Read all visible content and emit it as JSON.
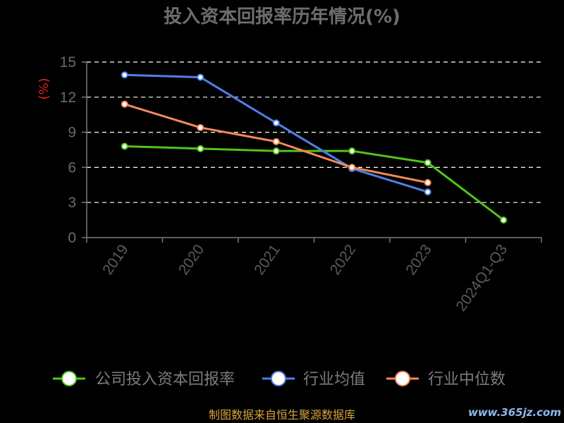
{
  "chart_data": {
    "type": "line",
    "title": "投入资本回报率历年情况(%)",
    "xlabel": "",
    "ylabel": "(%)",
    "categories": [
      "2019",
      "2020",
      "2021",
      "2022",
      "2023",
      "2024Q1-Q3"
    ],
    "ylim": [
      0,
      15
    ],
    "yticks": [
      0,
      3,
      6,
      9,
      12,
      15
    ],
    "grid": true,
    "legend_position": "bottom",
    "series": [
      {
        "name": "公司投入资本回报率",
        "color": "#52c41a",
        "values": [
          7.8,
          7.6,
          7.4,
          7.4,
          6.4,
          1.5
        ]
      },
      {
        "name": "行业均值",
        "color": "#4f7fe8",
        "values": [
          13.9,
          13.7,
          9.8,
          5.9,
          3.9,
          null
        ]
      },
      {
        "name": "行业中位数",
        "color": "#f5895a",
        "values": [
          11.4,
          9.4,
          8.2,
          6.0,
          4.7,
          null
        ]
      }
    ]
  },
  "footer": {
    "source": "制图数据来自恒生聚源数据库",
    "watermark": "www.365jz.com"
  },
  "colors": {
    "background": "#000000",
    "grid": "#ffffff",
    "axis": "#7a7a7a"
  }
}
